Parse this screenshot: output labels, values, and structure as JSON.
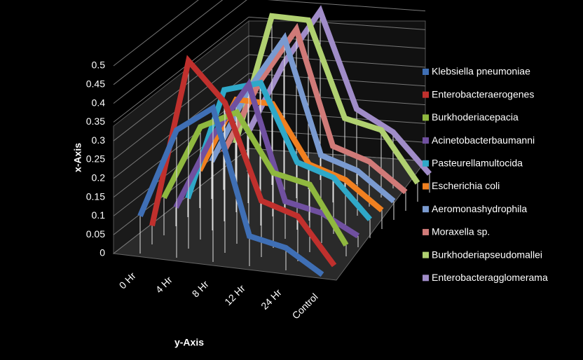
{
  "chart_data": {
    "type": "line3d",
    "y_label": "x-Axis",
    "x_label": "y-Axis",
    "categories": [
      "0 Hr",
      "4 Hr",
      "8 Hr",
      "12 Hr",
      "24 Hr",
      "Control"
    ],
    "ylim": [
      0,
      0.5
    ],
    "yticks": [
      0,
      0.05,
      0.1,
      0.15,
      0.2,
      0.25,
      0.3,
      0.35,
      0.4,
      0.45,
      0.5
    ],
    "grid": true,
    "legend": "right",
    "series": [
      {
        "name": "Klebsiella pneumoniae",
        "color": "#3f6fb5",
        "values": [
          0.1,
          0.34,
          0.41,
          0.08,
          0.06,
          0.0
        ]
      },
      {
        "name": "Enterobacteraerogenes",
        "color": "#c0302d",
        "values": [
          0.05,
          0.5,
          0.4,
          0.15,
          0.12,
          0.0
        ]
      },
      {
        "name": "Burkhoderiacepacia",
        "color": "#8fb83f",
        "values": [
          0.1,
          0.3,
          0.35,
          0.2,
          0.18,
          0.03
        ]
      },
      {
        "name": "Acinetobacterbaumanni",
        "color": "#7050a0",
        "values": [
          0.05,
          0.25,
          0.4,
          0.1,
          0.08,
          0.03
        ]
      },
      {
        "name": "Pasteurellamultocida",
        "color": "#2fa8c8",
        "values": [
          0.05,
          0.35,
          0.38,
          0.18,
          0.15,
          0.05
        ]
      },
      {
        "name": "Escherichia coli",
        "color": "#f08020",
        "values": [
          0.1,
          0.3,
          0.3,
          0.15,
          0.12,
          0.05
        ]
      },
      {
        "name": "Aeromonashydrophila",
        "color": "#7a9ad0",
        "values": [
          0.1,
          0.3,
          0.45,
          0.15,
          0.12,
          0.05
        ]
      },
      {
        "name": "Moraxella sp.",
        "color": "#d07a78",
        "values": [
          0.1,
          0.3,
          0.45,
          0.15,
          0.12,
          0.05
        ]
      },
      {
        "name": "Burkhoderiapseudomallei",
        "color": "#b0d070",
        "values": [
          0.1,
          0.45,
          0.45,
          0.2,
          0.18,
          0.05
        ]
      },
      {
        "name": "Enterobacteragglomerama",
        "color": "#a08cc8",
        "values": [
          0.1,
          0.3,
          0.45,
          0.2,
          0.15,
          0.05
        ]
      }
    ]
  }
}
